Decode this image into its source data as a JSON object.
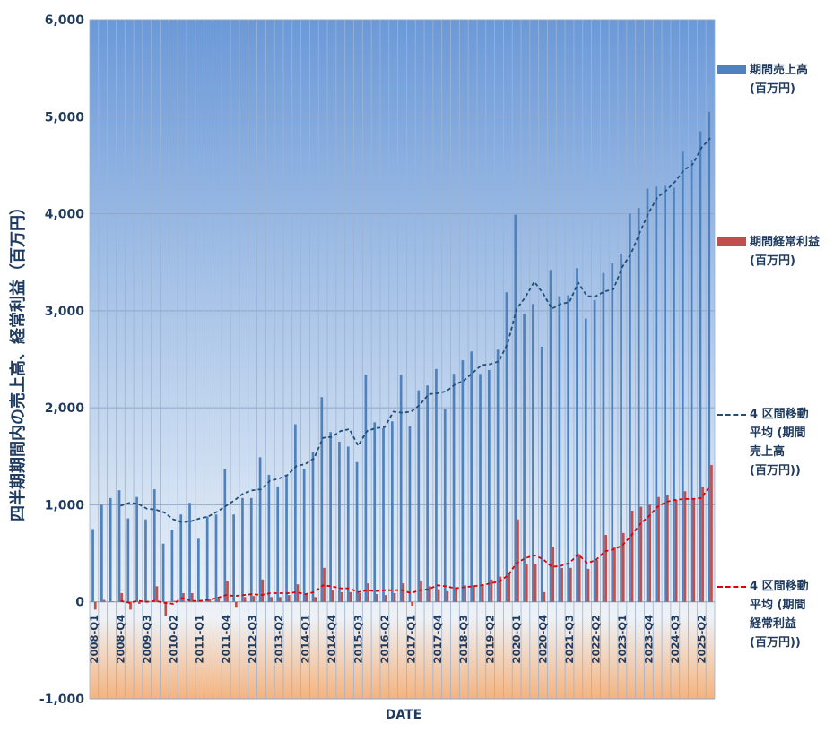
{
  "chart_data": {
    "type": "bar",
    "ylabel": "四半期期間内の売上高、経常利益（百万円）",
    "xlabel": "DATE",
    "ylim": [
      -1000,
      6000
    ],
    "yticks": [
      "-1,000",
      "0",
      "1,000",
      "2,000",
      "3,000",
      "4,000",
      "5,000",
      "6,000"
    ],
    "grid": true,
    "legend_position": "right",
    "x_tick_labels": [
      "2008-Q1",
      "2008-Q4",
      "2009-Q3",
      "2010-Q2",
      "2011-Q1",
      "2011-Q4",
      "2012-Q3",
      "2013-Q2",
      "2014-Q1",
      "2014-Q4",
      "2015-Q3",
      "2016-Q2",
      "2017-Q1",
      "2017-Q4",
      "2018-Q3",
      "2019-Q2",
      "2020-Q1",
      "2020-Q4",
      "2021-Q3",
      "2022-Q2",
      "2023-Q1",
      "2023-Q4",
      "2024-Q3",
      "2025-Q2"
    ],
    "categories": [
      "2008-Q1",
      "2008-Q2",
      "2008-Q3",
      "2008-Q4",
      "2009-Q1",
      "2009-Q2",
      "2009-Q3",
      "2009-Q4",
      "2010-Q1",
      "2010-Q2",
      "2010-Q3",
      "2010-Q4",
      "2011-Q1",
      "2011-Q2",
      "2011-Q3",
      "2011-Q4",
      "2012-Q1",
      "2012-Q2",
      "2012-Q3",
      "2012-Q4",
      "2013-Q1",
      "2013-Q2",
      "2013-Q3",
      "2013-Q4",
      "2014-Q1",
      "2014-Q2",
      "2014-Q3",
      "2014-Q4",
      "2015-Q1",
      "2015-Q2",
      "2015-Q3",
      "2015-Q4",
      "2016-Q1",
      "2016-Q2",
      "2016-Q3",
      "2016-Q4",
      "2017-Q1",
      "2017-Q2",
      "2017-Q3",
      "2017-Q4",
      "2018-Q1",
      "2018-Q2",
      "2018-Q3",
      "2018-Q4",
      "2019-Q1",
      "2019-Q2",
      "2019-Q3",
      "2019-Q4",
      "2020-Q1",
      "2020-Q2",
      "2020-Q3",
      "2020-Q4",
      "2021-Q1",
      "2021-Q2",
      "2021-Q3",
      "2021-Q4",
      "2022-Q1",
      "2022-Q2",
      "2022-Q3",
      "2022-Q4",
      "2023-Q1",
      "2023-Q2",
      "2023-Q3",
      "2023-Q4",
      "2024-Q1",
      "2024-Q2",
      "2024-Q3",
      "2024-Q4",
      "2025-Q1",
      "2025-Q2",
      "2025-Q3"
    ],
    "series": [
      {
        "name": "期間売上高\n(百万円)",
        "kind": "bar",
        "color": "#4f81bd",
        "values": [
          750,
          1000,
          1070,
          1150,
          860,
          1080,
          850,
          1160,
          600,
          740,
          900,
          1020,
          650,
          880,
          900,
          1370,
          900,
          1070,
          1070,
          1490,
          1310,
          1190,
          1300,
          1830,
          1370,
          1540,
          2110,
          1750,
          1650,
          1600,
          1440,
          2340,
          1850,
          1790,
          1860,
          2340,
          1810,
          2180,
          2230,
          2400,
          1990,
          2350,
          2490,
          2580,
          2350,
          2390,
          2600,
          3190,
          3990,
          2970,
          3070,
          2630,
          3420,
          3150,
          3160,
          3440,
          2920,
          3110,
          3390,
          3490,
          3590,
          4000,
          4060,
          4260,
          4280,
          4290,
          4270,
          4640,
          4550,
          4850,
          5050
        ]
      },
      {
        "name": "期間経常利益\n(百万円)",
        "kind": "bar",
        "color": "#c0504d",
        "values": [
          -80,
          20,
          5,
          90,
          -80,
          -20,
          10,
          160,
          -150,
          10,
          90,
          90,
          20,
          30,
          30,
          210,
          -60,
          50,
          60,
          230,
          50,
          50,
          70,
          180,
          80,
          50,
          350,
          120,
          100,
          100,
          90,
          190,
          80,
          70,
          90,
          190,
          -40,
          220,
          160,
          130,
          110,
          150,
          170,
          170,
          170,
          230,
          260,
          290,
          850,
          390,
          390,
          100,
          570,
          350,
          350,
          490,
          340,
          430,
          690,
          560,
          710,
          940,
          980,
          1000,
          1080,
          1100,
          1050,
          1140,
          1060,
          1180,
          1410
        ]
      },
      {
        "name": "4 区間移動\n平均 (期間\n売上高\n(百万円))",
        "kind": "line",
        "color": "#1f4e79",
        "values": [
          null,
          null,
          null,
          990,
          1020,
          1010,
          960,
          950,
          920,
          850,
          820,
          830,
          860,
          880,
          930,
          990,
          1050,
          1120,
          1150,
          1160,
          1250,
          1270,
          1310,
          1400,
          1420,
          1480,
          1690,
          1700,
          1760,
          1780,
          1610,
          1760,
          1790,
          1800,
          1960,
          1950,
          1960,
          2030,
          2140,
          2150,
          2170,
          2240,
          2280,
          2360,
          2440,
          2450,
          2480,
          2670,
          3020,
          3140,
          3300,
          3180,
          3020,
          3070,
          3090,
          3290,
          3150,
          3150,
          3200,
          3220,
          3450,
          3590,
          3810,
          4010,
          4170,
          4240,
          4330,
          4450,
          4510,
          4680,
          4780
        ]
      },
      {
        "name": "4 区間移動\n平均 (期間\n経常利益\n(百万円))",
        "kind": "line",
        "color": "#e00000",
        "values": [
          null,
          null,
          null,
          10,
          -10,
          10,
          0,
          10,
          -10,
          -20,
          40,
          10,
          10,
          20,
          40,
          70,
          60,
          70,
          80,
          70,
          90,
          90,
          90,
          100,
          80,
          100,
          170,
          160,
          140,
          140,
          100,
          120,
          110,
          120,
          120,
          120,
          90,
          120,
          130,
          170,
          160,
          140,
          150,
          160,
          170,
          190,
          210,
          270,
          400,
          450,
          480,
          440,
          360,
          370,
          400,
          490,
          400,
          430,
          520,
          540,
          580,
          680,
          800,
          880,
          980,
          1030,
          1050,
          1060,
          1060,
          1070,
          1200
        ]
      }
    ]
  }
}
